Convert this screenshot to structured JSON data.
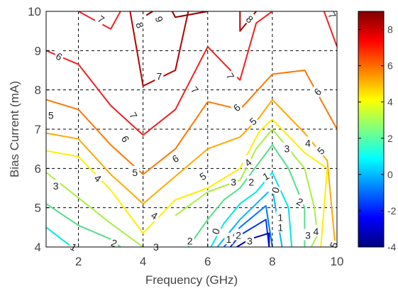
{
  "chart_data": {
    "type": "contour",
    "title": "",
    "xlabel": "Frequency (GHz)",
    "ylabel": "Bias Current (mA)",
    "xlim": [
      1,
      10
    ],
    "ylim": [
      4,
      10
    ],
    "xticks": [
      "2",
      "4",
      "6",
      "8",
      "10"
    ],
    "yticks": [
      "4",
      "5",
      "6",
      "7",
      "8",
      "9",
      "10"
    ],
    "grid": true,
    "grid_style": "dashed",
    "colormap": "jet",
    "colorbar": {
      "range": [
        -4,
        9
      ],
      "ticks": [
        "8",
        "6",
        "4",
        "2",
        "0",
        "-2",
        "-4"
      ]
    },
    "levels": [
      {
        "level": 9,
        "color": "#8b0000",
        "segments": [
          [
            [
              4.9,
              10
            ],
            [
              5.0,
              9.85
            ],
            [
              6.0,
              10
            ]
          ],
          [
            [
              4.3,
              10
            ],
            [
              4.1,
              9.9
            ]
          ]
        ]
      },
      {
        "level": 8,
        "color": "#b20000",
        "segments": [
          [
            [
              3.6,
              10
            ],
            [
              4.0,
              8.1
            ],
            [
              5.0,
              8.5
            ],
            [
              5.4,
              10
            ]
          ],
          [
            [
              7.0,
              10
            ],
            [
              7.0,
              9.5
            ],
            [
              7.5,
              10
            ]
          ]
        ]
      },
      {
        "level": 7,
        "color": "#ee2222",
        "segments": [
          [
            [
              1.0,
              9.0
            ],
            [
              2.0,
              8.65
            ],
            [
              3.0,
              7.6
            ],
            [
              4.0,
              6.85
            ],
            [
              5.0,
              7.5
            ],
            [
              6.0,
              9.1
            ],
            [
              7.0,
              8.25
            ],
            [
              7.5,
              9.7
            ],
            [
              8.0,
              10
            ]
          ],
          [
            [
              2.0,
              10
            ],
            [
              3.0,
              9.55
            ],
            [
              3.3,
              10
            ]
          ],
          [
            [
              9.6,
              10
            ],
            [
              10.0,
              9.1
            ]
          ]
        ]
      },
      {
        "level": 6,
        "color": "#ff7700",
        "segments": [
          [
            [
              1.0,
              7.75
            ],
            [
              2.0,
              7.5
            ],
            [
              3.0,
              6.6
            ],
            [
              4.0,
              5.85
            ],
            [
              5.0,
              6.5
            ],
            [
              6.0,
              7.7
            ],
            [
              7.0,
              7.5
            ],
            [
              8.0,
              8.4
            ],
            [
              9.0,
              8.5
            ],
            [
              10.0,
              7.0
            ]
          ]
        ]
      },
      {
        "level": 5,
        "color": "#ffaa00",
        "segments": [
          [
            [
              1.0,
              6.9
            ],
            [
              2.0,
              6.75
            ],
            [
              3.0,
              5.85
            ],
            [
              4.0,
              5.1
            ],
            [
              5.0,
              5.8
            ],
            [
              6.0,
              6.5
            ],
            [
              7.0,
              6.8
            ],
            [
              7.6,
              7.3
            ],
            [
              8.0,
              7.75
            ],
            [
              9.0,
              6.9
            ],
            [
              9.7,
              6.2
            ],
            [
              9.95,
              4.0
            ]
          ]
        ]
      },
      {
        "level": 4,
        "color": "#ffee00",
        "segments": [
          [
            [
              1.0,
              6.45
            ],
            [
              2.0,
              6.3
            ],
            [
              3.0,
              5.45
            ],
            [
              4.0,
              4.35
            ],
            [
              5.0,
              5.2
            ],
            [
              6.0,
              5.5
            ],
            [
              7.0,
              6.0
            ],
            [
              7.6,
              6.95
            ],
            [
              8.0,
              7.25
            ],
            [
              9.0,
              6.4
            ],
            [
              9.7,
              6.0
            ],
            [
              9.5,
              4.0
            ]
          ]
        ]
      },
      {
        "level": 3,
        "color": "#aaee44",
        "segments": [
          [
            [
              1.0,
              5.9
            ],
            [
              2.0,
              5.25
            ],
            [
              3.0,
              4.6
            ],
            [
              4.0,
              4.0
            ]
          ],
          [
            [
              5.0,
              4.8
            ],
            [
              6.0,
              5.4
            ],
            [
              7.0,
              5.7
            ],
            [
              7.5,
              6.5
            ],
            [
              8.0,
              7.0
            ],
            [
              9.0,
              6.0
            ],
            [
              9.3,
              5.0
            ],
            [
              9.4,
              4.3
            ],
            [
              9.2,
              4.0
            ]
          ]
        ]
      },
      {
        "level": 2,
        "color": "#55dd88",
        "segments": [
          [
            [
              1.0,
              5.1
            ],
            [
              2.0,
              4.55
            ],
            [
              3.0,
              4.2
            ],
            [
              3.3,
              4.0
            ]
          ],
          [
            [
              5.4,
              4.0
            ],
            [
              6.0,
              4.7
            ],
            [
              6.5,
              5.2
            ],
            [
              7.0,
              5.5
            ],
            [
              8.0,
              6.6
            ],
            [
              8.5,
              6.0
            ],
            [
              9.0,
              5.0
            ],
            [
              9.0,
              4.0
            ]
          ]
        ]
      },
      {
        "level": 1,
        "color": "#00e5e5",
        "segments": [
          [
            [
              1.0,
              4.5
            ],
            [
              1.8,
              4.0
            ]
          ],
          [
            [
              6.1,
              4.0
            ],
            [
              6.5,
              4.6
            ],
            [
              7.0,
              5.1
            ],
            [
              7.5,
              5.4
            ],
            [
              8.0,
              5.9
            ],
            [
              8.5,
              5.0
            ],
            [
              8.6,
              4.0
            ]
          ]
        ]
      },
      {
        "level": 0,
        "color": "#00b5ff",
        "segments": [
          [
            [
              6.3,
              4.0
            ],
            [
              7.0,
              4.7
            ],
            [
              8.0,
              5.5
            ],
            [
              8.3,
              4.0
            ]
          ]
        ]
      },
      {
        "level": -1,
        "color": "#0077ff",
        "segments": [
          [
            [
              6.5,
              4.0
            ],
            [
              7.0,
              4.5
            ],
            [
              7.8,
              5.05
            ],
            [
              8.0,
              4.0
            ]
          ]
        ]
      },
      {
        "level": -2,
        "color": "#0033ee",
        "segments": [
          [
            [
              6.7,
              4.0
            ],
            [
              7.0,
              4.3
            ],
            [
              7.8,
              4.7
            ],
            [
              7.9,
              4.0
            ]
          ]
        ]
      },
      {
        "level": -3,
        "color": "#0000bb",
        "segments": [
          [
            [
              6.9,
              4.0
            ],
            [
              7.3,
              4.2
            ],
            [
              7.9,
              4.35
            ],
            [
              7.9,
              4.0
            ]
          ]
        ]
      }
    ],
    "contour_labels": [
      {
        "text": "7",
        "x": 2.7,
        "y": 9.8,
        "rotate": 35
      },
      {
        "text": "8",
        "x": 3.9,
        "y": 9.65,
        "rotate": 70
      },
      {
        "text": "9",
        "x": 4.5,
        "y": 9.8,
        "rotate": 70
      },
      {
        "text": "8",
        "x": 7.3,
        "y": 9.8,
        "rotate": 40
      },
      {
        "text": "7",
        "x": 9.85,
        "y": 9.9,
        "rotate": 60
      },
      {
        "text": "6",
        "x": 1.4,
        "y": 8.85,
        "rotate": 30
      },
      {
        "text": "7",
        "x": 4.5,
        "y": 8.35,
        "rotate": 0
      },
      {
        "text": "7",
        "x": 5.6,
        "y": 8.0,
        "rotate": 50
      },
      {
        "text": "7",
        "x": 6.7,
        "y": 8.35,
        "rotate": 60
      },
      {
        "text": "6",
        "x": 9.4,
        "y": 7.95,
        "rotate": -45
      },
      {
        "text": "5",
        "x": 1.15,
        "y": 7.35,
        "rotate": 0
      },
      {
        "text": "7",
        "x": 3.7,
        "y": 7.35,
        "rotate": 60
      },
      {
        "text": "6",
        "x": 3.45,
        "y": 6.75,
        "rotate": 60
      },
      {
        "text": "6",
        "x": 6.9,
        "y": 7.55,
        "rotate": -40
      },
      {
        "text": "5",
        "x": 7.4,
        "y": 7.2,
        "rotate": -40
      },
      {
        "text": "3",
        "x": 8.45,
        "y": 6.5,
        "rotate": 0
      },
      {
        "text": "4",
        "x": 9.1,
        "y": 6.65,
        "rotate": 0
      },
      {
        "text": "5",
        "x": 9.5,
        "y": 6.45,
        "rotate": -45
      },
      {
        "text": "4",
        "x": 2.6,
        "y": 5.75,
        "rotate": 40
      },
      {
        "text": "5",
        "x": 3.75,
        "y": 5.9,
        "rotate": 0
      },
      {
        "text": "6",
        "x": 5.0,
        "y": 6.25,
        "rotate": -30
      },
      {
        "text": "5",
        "x": 5.85,
        "y": 5.8,
        "rotate": -30
      },
      {
        "text": "4",
        "x": 7.25,
        "y": 6.15,
        "rotate": -40
      },
      {
        "text": "3",
        "x": 6.8,
        "y": 5.65,
        "rotate": 0
      },
      {
        "text": "2",
        "x": 7.35,
        "y": 5.65,
        "rotate": 0
      },
      {
        "text": "1",
        "x": 7.8,
        "y": 5.8,
        "rotate": -30
      },
      {
        "text": "0",
        "x": 8.1,
        "y": 5.45,
        "rotate": -70
      },
      {
        "text": "2",
        "x": 8.85,
        "y": 5.15,
        "rotate": 30
      },
      {
        "text": "3",
        "x": 1.3,
        "y": 5.55,
        "rotate": 0
      },
      {
        "text": "4",
        "x": 4.35,
        "y": 4.8,
        "rotate": 30
      },
      {
        "text": "1",
        "x": 8.25,
        "y": 4.75,
        "rotate": 0
      },
      {
        "text": "1",
        "x": 8.25,
        "y": 4.5,
        "rotate": 0
      },
      {
        "text": "3",
        "x": 9.1,
        "y": 4.3,
        "rotate": 0
      },
      {
        "text": "4",
        "x": 9.35,
        "y": 4.4,
        "rotate": 0
      },
      {
        "text": "5",
        "x": 9.9,
        "y": 4.05,
        "rotate": -70
      },
      {
        "text": "2",
        "x": 3.1,
        "y": 4.1,
        "rotate": 20
      },
      {
        "text": "3",
        "x": 4.4,
        "y": 4.0,
        "rotate": 0
      },
      {
        "text": "2",
        "x": 5.45,
        "y": 4.15,
        "rotate": 0
      },
      {
        "text": "0",
        "x": 6.25,
        "y": 4.4,
        "rotate": -70
      },
      {
        "text": "1",
        "x": 6.65,
        "y": 4.2,
        "rotate": 0
      },
      {
        "text": "2",
        "x": 6.95,
        "y": 4.3,
        "rotate": 0
      },
      {
        "text": "3",
        "x": 7.3,
        "y": 4.15,
        "rotate": 0
      },
      {
        "text": "1",
        "x": 1.85,
        "y": 4.0,
        "rotate": 30
      }
    ]
  }
}
